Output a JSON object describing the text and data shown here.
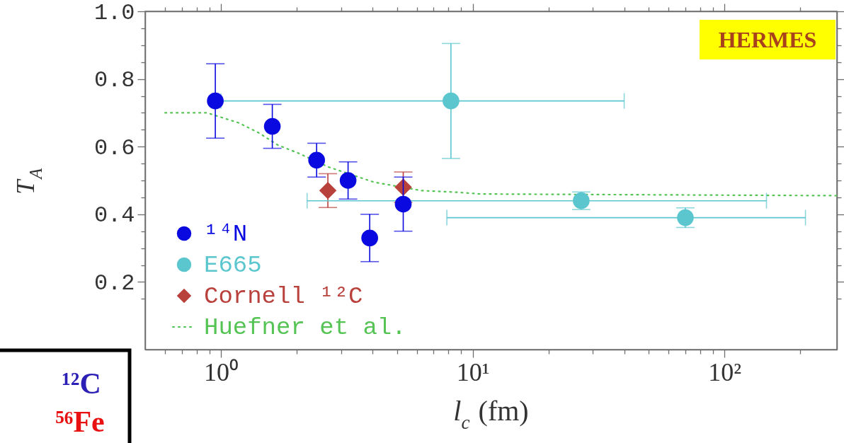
{
  "chart_data": {
    "type": "scatter",
    "xlabel": "l$_{c}$ (fm)",
    "ylabel": "T$_{A}$",
    "annotations": [
      "HERMES",
      "¹²C",
      "⁵⁶Fe"
    ],
    "log": "x",
    "xlim": [
      0.5,
      280
    ],
    "ylim": [
      0,
      1
    ],
    "xticks": [
      {
        "value": 0.6,
        "label": null
      },
      {
        "value": 0.7,
        "label": null
      },
      {
        "value": 0.8,
        "label": null
      },
      {
        "value": 0.9,
        "label": null
      },
      {
        "value": 1,
        "label": "10⁰"
      },
      {
        "value": 2,
        "label": null
      },
      {
        "value": 3,
        "label": null
      },
      {
        "value": 4,
        "label": null
      },
      {
        "value": 5,
        "label": null
      },
      {
        "value": 6,
        "label": null
      },
      {
        "value": 7,
        "label": null
      },
      {
        "value": 8,
        "label": null
      },
      {
        "value": 9,
        "label": null
      },
      {
        "value": 10,
        "label": "10¹"
      },
      {
        "value": 20,
        "label": null
      },
      {
        "value": 30,
        "label": null
      },
      {
        "value": 40,
        "label": null
      },
      {
        "value": 50,
        "label": null
      },
      {
        "value": 60,
        "label": null
      },
      {
        "value": 70,
        "label": null
      },
      {
        "value": 80,
        "label": null
      },
      {
        "value": 90,
        "label": null
      },
      {
        "value": 100,
        "label": "10²"
      },
      {
        "value": 200,
        "label": null
      }
    ],
    "yticks": [
      {
        "value": 0.15,
        "label": null
      },
      0.2,
      {
        "value": 0.25,
        "label": null
      },
      {
        "value": 0.3,
        "label": null
      },
      {
        "value": 0.35,
        "label": null
      },
      0.4,
      {
        "value": 0.45,
        "label": null
      },
      {
        "value": 0.5,
        "label": null
      },
      {
        "value": 0.55,
        "label": null
      },
      0.6,
      {
        "value": 0.65,
        "label": null
      },
      {
        "value": 0.7,
        "label": null
      },
      {
        "value": 0.75,
        "label": null
      },
      0.8,
      {
        "value": 0.85,
        "label": null
      },
      {
        "value": 0.9,
        "label": null
      },
      {
        "value": 0.95,
        "label": null
      },
      {
        "value": 1,
        "label": "1.0"
      }
    ],
    "legend": "bottom left",
    "series": [
      {
        "name": "¹⁴N",
        "marker": "circle",
        "color": "#0a0ae0",
        "x": [
          0.95,
          1.6,
          2.4,
          3.2,
          3.9,
          5.3
        ],
        "values": [
          0.735,
          0.66,
          0.56,
          0.5,
          0.33,
          0.43
        ],
        "errors": [
          0.11,
          0.065,
          0.05,
          0.055,
          0.07,
          0.08
        ]
      },
      {
        "name": "E665",
        "marker": "circle",
        "color": "#5cc6cf",
        "x": [
          8.2,
          27,
          70
        ],
        "values": [
          0.735,
          0.44,
          0.39
        ],
        "errors": [
          0.17,
          0.026,
          0.029
        ],
        "xerrors": [
          [
            1.0,
            40
          ],
          [
            2.2,
            147
          ],
          [
            7.9,
            210
          ]
        ]
      },
      {
        "name": "Cornell ¹²C",
        "marker": "diamond",
        "color": "#b8413c",
        "x": [
          2.66,
          5.3
        ],
        "values": [
          0.47,
          0.48
        ],
        "errors": [
          0.05,
          0.045
        ]
      },
      {
        "name": "Huefner et al.",
        "type": "line",
        "marker": "none",
        "line_style": "dotted",
        "color": "#55c455",
        "x": [
          0.6,
          0.88,
          0.97,
          1.18,
          1.42,
          1.68,
          2.04,
          2.67,
          4.05,
          6.26,
          8.74,
          10.8,
          280
        ],
        "values": [
          0.7,
          0.7,
          0.69,
          0.67,
          0.64,
          0.605,
          0.58,
          0.54,
          0.495,
          0.47,
          0.465,
          0.46,
          0.455
        ]
      }
    ]
  }
}
